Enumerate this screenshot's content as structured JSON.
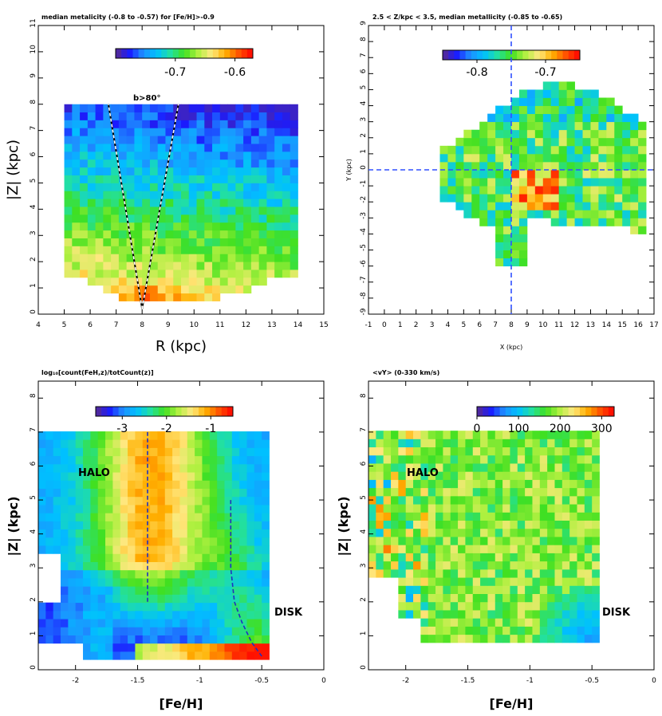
{
  "chart_data": [
    {
      "type": "heatmap",
      "title": "median metalicity (-0.8 to -0.57) for [Fe/H]>-0.9",
      "xlabel": "R (kpc)",
      "ylabel": "|Z| (kpc)",
      "xlim": [
        4,
        15
      ],
      "ylim": [
        0,
        11
      ],
      "xticks": [
        "4",
        "5",
        "6",
        "7",
        "8",
        "9",
        "10",
        "11",
        "12",
        "13",
        "14",
        "15"
      ],
      "yticks": [
        "0",
        "1",
        "2",
        "3",
        "4",
        "5",
        "6",
        "7",
        "8",
        "9",
        "10",
        "11"
      ],
      "colorbar": {
        "range": [
          -0.8,
          -0.57
        ],
        "tick_labels": [
          "-0.7",
          "-0.6"
        ]
      },
      "annotation": "b>80°",
      "cone_lines": [
        {
          "x": [
            8,
            6.7
          ],
          "y": [
            0.2,
            8
          ]
        },
        {
          "x": [
            8,
            9.4
          ],
          "y": [
            0.2,
            8
          ]
        }
      ],
      "data_extent": {
        "x": [
          5,
          14
        ],
        "y": [
          0.5,
          8
        ]
      }
    },
    {
      "type": "heatmap",
      "title": "2.5 < Z/kpc < 3.5, median metallicity (-0.85 to -0.65)",
      "xlabel": "X (kpc)",
      "ylabel": "Y (kpc)",
      "xlim": [
        -1,
        17
      ],
      "ylim": [
        -9,
        9
      ],
      "xticks": [
        "-1",
        "0",
        "1",
        "2",
        "3",
        "4",
        "5",
        "6",
        "7",
        "8",
        "9",
        "10",
        "11",
        "12",
        "13",
        "14",
        "15",
        "16",
        "17"
      ],
      "yticks": [
        "-9",
        "-8",
        "-7",
        "-6",
        "-5",
        "-4",
        "-3",
        "-2",
        "-1",
        "0",
        "1",
        "2",
        "3",
        "4",
        "5",
        "6",
        "7",
        "8",
        "9"
      ],
      "colorbar": {
        "range": [
          -0.85,
          -0.65
        ],
        "tick_labels": [
          "-0.8",
          "-0.7"
        ]
      },
      "guide_lines": {
        "x": 8,
        "y": 0
      },
      "data_extent": {
        "x": [
          3.5,
          17
        ],
        "y": [
          -6.5,
          6.5
        ]
      }
    },
    {
      "type": "heatmap",
      "title": "log₁₀[count(FeH,z)/totCount(z)]",
      "xlabel": "[Fe/H]",
      "ylabel": "|Z| (kpc)",
      "xlim": [
        -2.3,
        0
      ],
      "ylim": [
        0,
        8.5
      ],
      "xticks": [
        "-2",
        "-1.5",
        "-1",
        "-0.5",
        "0"
      ],
      "yticks": [
        "0",
        "1",
        "2",
        "3",
        "4",
        "5",
        "6",
        "7",
        "8"
      ],
      "colorbar": {
        "range": [
          -3.6,
          -0.5
        ],
        "tick_labels": [
          "-3",
          "-2",
          "-1"
        ]
      },
      "annotations": [
        "HALO",
        "DISK"
      ],
      "ridge_lines": [
        {
          "name": "halo",
          "x": [
            -1.42,
            -1.42
          ],
          "y": [
            2,
            7
          ]
        },
        {
          "name": "disk",
          "x": [
            -0.75,
            -0.75,
            -0.72,
            -0.66,
            -0.58,
            -0.5
          ],
          "y": [
            5,
            3,
            2,
            1.4,
            0.8,
            0.4
          ]
        }
      ],
      "data_extent": {
        "x": [
          -2.3,
          -0.45
        ],
        "y": [
          0.3,
          7
        ]
      }
    },
    {
      "type": "heatmap",
      "title": "<vY> (0-330 km/s)",
      "xlabel": "[Fe/H]",
      "ylabel": "|Z| (kpc)",
      "xlim": [
        -2.3,
        0
      ],
      "ylim": [
        0,
        8.5
      ],
      "xticks": [
        "-2",
        "-1.5",
        "-1",
        "-0.5",
        "0"
      ],
      "yticks": [
        "0",
        "1",
        "2",
        "3",
        "4",
        "5",
        "6",
        "7",
        "8"
      ],
      "colorbar": {
        "range": [
          0,
          330
        ],
        "tick_labels": [
          "0",
          "100",
          "200",
          "300"
        ]
      },
      "annotations": [
        "HALO",
        "DISK"
      ],
      "data_extent": {
        "x": [
          -2.3,
          -0.45
        ],
        "y": [
          0.8,
          7
        ]
      }
    }
  ],
  "colormap": [
    "#5b2c8c",
    "#1a1aff",
    "#1e90ff",
    "#00c0ff",
    "#22e0a0",
    "#40e020",
    "#b0f040",
    "#ffe880",
    "#ffb000",
    "#ff5000",
    "#ff0000"
  ]
}
